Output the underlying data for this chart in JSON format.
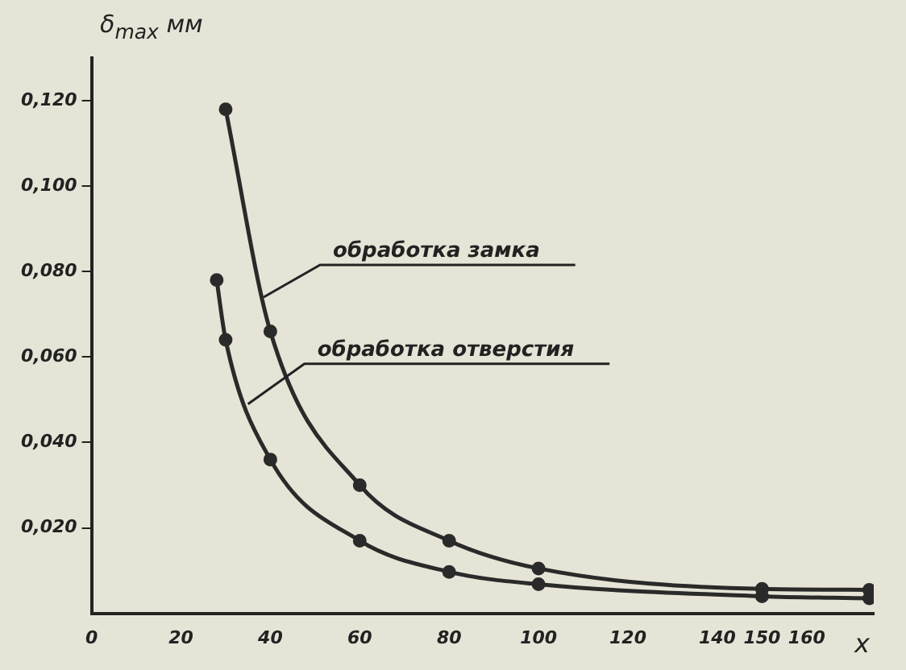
{
  "chart_data": {
    "type": "line",
    "ylabel": "δ$_{max}$ мм",
    "xlabel": "x",
    "xlim": [
      0,
      175
    ],
    "xticks": [
      0,
      20,
      40,
      60,
      80,
      100,
      120,
      140,
      150,
      160
    ],
    "ylim": [
      0,
      0.13
    ],
    "yticks": [
      {
        "value": 0.02,
        "label": "0,020"
      },
      {
        "value": 0.04,
        "label": "0,040"
      },
      {
        "value": 0.06,
        "label": "0,060"
      },
      {
        "value": 0.08,
        "label": "0,080"
      },
      {
        "value": 0.1,
        "label": "0,100"
      },
      {
        "value": 0.12,
        "label": "0,120"
      }
    ],
    "grid": false,
    "legend": false,
    "marker": "circle",
    "line_style": "solid",
    "series": [
      {
        "color": "#2a2a2a",
        "x": [
          30,
          40,
          60,
          80,
          100,
          150,
          174
        ],
        "values": [
          0.118,
          0.066,
          0.03,
          0.017,
          0.0105,
          0.0057,
          0.0055
        ]
      },
      {
        "color": "#2a2a2a",
        "x": [
          28,
          30,
          40,
          60,
          80,
          100,
          150,
          174
        ],
        "values": [
          0.078,
          0.064,
          0.036,
          0.017,
          0.0097,
          0.0068,
          0.004,
          0.0035
        ]
      }
    ],
    "annotations": [
      {
        "text": "обработка замка",
        "x": 38.5,
        "y": 0.074
      },
      {
        "text": "обработка отверстия",
        "x": 35,
        "y": 0.049
      }
    ]
  }
}
